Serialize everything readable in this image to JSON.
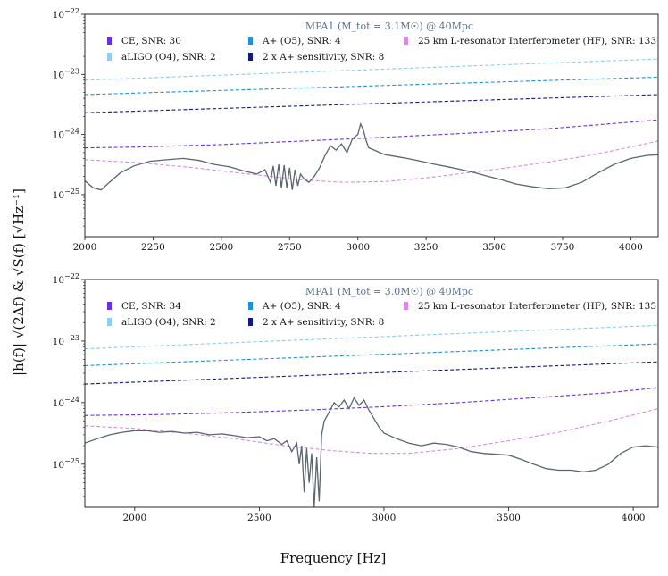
{
  "chart_data": [
    {
      "type": "line",
      "title": "MPA1 (M_tot = 3.1M☉) @ 40Mpc",
      "yscale": "log",
      "xlim": [
        2000,
        4100
      ],
      "ylim": [
        2e-26,
        1e-22
      ],
      "xticks": [
        2000,
        2250,
        2500,
        2750,
        3000,
        3250,
        3500,
        3750,
        4000
      ],
      "yticks": [
        {
          "v": 1e-25,
          "label": "10^-25"
        },
        {
          "v": 1e-24,
          "label": "10^-24"
        },
        {
          "v": 1e-23,
          "label": "10^-23"
        },
        {
          "v": 1e-22,
          "label": "10^-22"
        }
      ],
      "legend": [
        {
          "label": "CE, SNR: 30",
          "color": "#6a2fe0"
        },
        {
          "label": "A+ (O5), SNR: 4",
          "color": "#1e90e0"
        },
        {
          "label": "25 km L-resonator Interferometer (HF), SNR: 133",
          "color": "#d88ae8"
        },
        {
          "label": "aLIGO (O4), SNR: 2",
          "color": "#8ccfee"
        },
        {
          "label": "2 x A+ sensitivity, SNR: 8",
          "color": "#101a80"
        }
      ],
      "series": [
        {
          "name": "aLIGO (O4)",
          "color": "#8ccfee",
          "style": "dashed",
          "x": [
            2000,
            4100
          ],
          "y": [
            8e-24,
            1.8e-23
          ]
        },
        {
          "name": "A+ (O5)",
          "color": "#1e90e0",
          "style": "dashed",
          "x": [
            2000,
            4100
          ],
          "y": [
            4.6e-24,
            9e-24
          ]
        },
        {
          "name": "2 x A+ sensitivity",
          "color": "#101a80",
          "style": "dashed",
          "x": [
            2000,
            4100
          ],
          "y": [
            2.3e-24,
            4.6e-24
          ]
        },
        {
          "name": "CE",
          "color": "#6a2fe0",
          "style": "dashed",
          "x": [
            2000,
            2200,
            2500,
            2800,
            3100,
            3400,
            3700,
            4100
          ],
          "y": [
            6e-25,
            6.2e-25,
            6.8e-25,
            7.8e-25,
            9e-25,
            1.05e-24,
            1.25e-24,
            1.75e-24
          ]
        },
        {
          "name": "25 km L-resonator Interferometer (HF)",
          "color": "#d88ae8",
          "style": "dashed",
          "x": [
            2000,
            2200,
            2400,
            2600,
            2800,
            2950,
            3100,
            3250,
            3400,
            3550,
            3700,
            3850,
            4000,
            4100
          ],
          "y": [
            3.8e-25,
            3.4e-25,
            2.8e-25,
            2.2e-25,
            1.75e-25,
            1.6e-25,
            1.65e-25,
            1.9e-25,
            2.3e-25,
            2.8e-25,
            3.5e-25,
            4.5e-25,
            6.2e-25,
            7.8e-25
          ]
        },
        {
          "name": "signal",
          "color": "#5a6570",
          "style": "solid",
          "x": [
            2000,
            2030,
            2060,
            2090,
            2130,
            2180,
            2240,
            2300,
            2360,
            2420,
            2470,
            2530,
            2580,
            2630,
            2660,
            2680,
            2690,
            2700,
            2710,
            2720,
            2730,
            2740,
            2750,
            2760,
            2770,
            2780,
            2790,
            2800,
            2820,
            2840,
            2860,
            2880,
            2900,
            2920,
            2940,
            2960,
            2980,
            3000,
            3010,
            3020,
            3030,
            3040,
            3060,
            3080,
            3100,
            3140,
            3180,
            3230,
            3280,
            3330,
            3380,
            3430,
            3480,
            3530,
            3580,
            3640,
            3700,
            3760,
            3820,
            3880,
            3940,
            4000,
            4060,
            4100
          ],
          "y": [
            1.7e-25,
            1.3e-25,
            1.2e-25,
            1.6e-25,
            2.3e-25,
            3e-25,
            3.6e-25,
            3.8e-25,
            4e-25,
            3.7e-25,
            3.2e-25,
            2.9e-25,
            2.5e-25,
            2.2e-25,
            2.6e-25,
            1.6e-25,
            3e-25,
            1.4e-25,
            3.2e-25,
            1.3e-25,
            3.1e-25,
            1.3e-25,
            2.8e-25,
            1.2e-25,
            2.6e-25,
            1.4e-25,
            2.2e-25,
            1.9e-25,
            1.6e-25,
            2e-25,
            2.8e-25,
            4.5e-25,
            6.5e-25,
            5.5e-25,
            7e-25,
            5e-25,
            8.5e-25,
            1e-24,
            1.5e-24,
            1.2e-24,
            8e-25,
            6e-25,
            5.5e-25,
            5e-25,
            4.6e-25,
            4.3e-25,
            4e-25,
            3.6e-25,
            3.2e-25,
            2.9e-25,
            2.6e-25,
            2.3e-25,
            2e-25,
            1.75e-25,
            1.5e-25,
            1.35e-25,
            1.25e-25,
            1.3e-25,
            1.6e-25,
            2.3e-25,
            3.2e-25,
            4e-25,
            4.5e-25,
            4.6e-25
          ]
        }
      ]
    },
    {
      "type": "line",
      "title": "MPA1 (M_tot = 3.0M☉) @ 40Mpc",
      "yscale": "log",
      "xlim": [
        1800,
        4100
      ],
      "ylim": [
        2e-26,
        1e-22
      ],
      "xticks": [
        2000,
        2500,
        3000,
        3500,
        4000
      ],
      "yticks": [
        {
          "v": 1e-25,
          "label": "10^-25"
        },
        {
          "v": 1e-24,
          "label": "10^-24"
        },
        {
          "v": 1e-23,
          "label": "10^-23"
        },
        {
          "v": 1e-22,
          "label": "10^-22"
        }
      ],
      "legend": [
        {
          "label": "CE, SNR: 34",
          "color": "#6a2fe0"
        },
        {
          "label": "A+ (O5), SNR: 4",
          "color": "#1e90e0"
        },
        {
          "label": "25 km L-resonator Interferometer (HF), SNR: 135",
          "color": "#d88ae8"
        },
        {
          "label": "aLIGO (O4), SNR: 2",
          "color": "#8ccfee"
        },
        {
          "label": "2 x A+ sensitivity, SNR: 8",
          "color": "#101a80"
        }
      ],
      "series": [
        {
          "name": "aLIGO (O4)",
          "color": "#8ccfee",
          "style": "dashed",
          "x": [
            1800,
            4100
          ],
          "y": [
            7.5e-24,
            1.8e-23
          ]
        },
        {
          "name": "A+ (O5)",
          "color": "#1e90e0",
          "style": "dashed",
          "x": [
            1800,
            4100
          ],
          "y": [
            4e-24,
            9e-24
          ]
        },
        {
          "name": "2 x A+ sensitivity",
          "color": "#101a80",
          "style": "dashed",
          "x": [
            1800,
            4100
          ],
          "y": [
            2e-24,
            4.6e-24
          ]
        },
        {
          "name": "CE",
          "color": "#6a2fe0",
          "style": "dashed",
          "x": [
            1800,
            2100,
            2400,
            2700,
            3000,
            3300,
            3600,
            3900,
            4100
          ],
          "y": [
            6.2e-25,
            6.4e-25,
            6.9e-25,
            7.6e-25,
            8.6e-25,
            1e-24,
            1.2e-24,
            1.45e-24,
            1.75e-24
          ]
        },
        {
          "name": "25 km L-resonator Interferometer (HF)",
          "color": "#d88ae8",
          "style": "dashed",
          "x": [
            1800,
            2000,
            2200,
            2400,
            2600,
            2800,
            2950,
            3100,
            3300,
            3500,
            3700,
            3900,
            4100
          ],
          "y": [
            4.2e-25,
            3.8e-25,
            3.2e-25,
            2.6e-25,
            2e-25,
            1.65e-25,
            1.5e-25,
            1.5e-25,
            1.8e-25,
            2.4e-25,
            3.3e-25,
            5e-25,
            8e-25
          ]
        },
        {
          "name": "signal",
          "color": "#5a6570",
          "style": "solid",
          "x": [
            1800,
            1850,
            1900,
            1950,
            2000,
            2050,
            2100,
            2150,
            2200,
            2250,
            2300,
            2350,
            2400,
            2450,
            2500,
            2530,
            2560,
            2590,
            2610,
            2630,
            2650,
            2660,
            2670,
            2680,
            2690,
            2700,
            2710,
            2720,
            2730,
            2740,
            2750,
            2760,
            2780,
            2800,
            2820,
            2840,
            2860,
            2880,
            2900,
            2920,
            2940,
            2960,
            2980,
            3000,
            3050,
            3100,
            3150,
            3200,
            3250,
            3300,
            3350,
            3400,
            3450,
            3500,
            3550,
            3600,
            3650,
            3700,
            3750,
            3800,
            3850,
            3900,
            3950,
            4000,
            4050,
            4100
          ],
          "y": [
            2.2e-25,
            2.6e-25,
            3e-25,
            3.3e-25,
            3.5e-25,
            3.5e-25,
            3.3e-25,
            3.4e-25,
            3.2e-25,
            3.3e-25,
            3e-25,
            3.1e-25,
            2.9e-25,
            2.7e-25,
            2.8e-25,
            2.4e-25,
            2.6e-25,
            2.1e-25,
            2.4e-25,
            1.6e-25,
            2.2e-25,
            1e-25,
            2e-25,
            3.5e-26,
            1.8e-25,
            5e-26,
            1.5e-25,
            2e-26,
            1.3e-25,
            2.5e-26,
            3e-25,
            5e-25,
            7e-25,
            1e-24,
            8.5e-25,
            1.1e-24,
            8e-25,
            1.2e-24,
            9e-25,
            1.1e-24,
            7.5e-25,
            5.5e-25,
            4e-25,
            3.2e-25,
            2.6e-25,
            2.2e-25,
            2e-25,
            2.2e-25,
            2.1e-25,
            1.9e-25,
            1.6e-25,
            1.5e-25,
            1.45e-25,
            1.4e-25,
            1.2e-25,
            1e-25,
            8.5e-26,
            8e-26,
            8e-26,
            7.5e-26,
            8e-26,
            1e-25,
            1.5e-25,
            1.9e-25,
            2e-25,
            1.9e-25
          ]
        }
      ]
    }
  ],
  "xlabel": "Frequency [Hz]",
  "ylabel": "|h(f)| √(2Δf) & √S(f)   [√Hz⁻¹]"
}
